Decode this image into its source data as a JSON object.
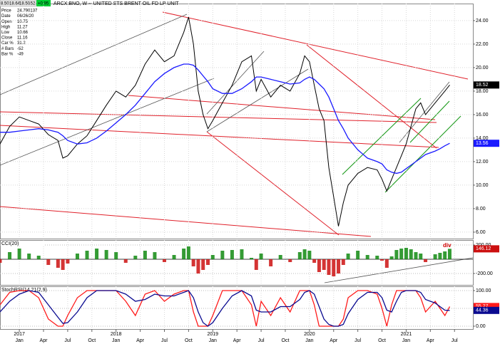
{
  "chart_data": {
    "type": "stock",
    "title": "ARCX:BNO, W -- UNITED STS BRENT OIL FD LP UNIT",
    "header_values": [
      "8.50",
      "18.64",
      "18.50",
      ".52"
    ],
    "change": "+0.95",
    "info": [
      {
        "label": "Price",
        "value": "24.790137"
      },
      {
        "label": "Date",
        "value": "06/26/20"
      },
      {
        "label": "Open",
        "value": "10.75"
      },
      {
        "label": "High",
        "value": "11.27"
      },
      {
        "label": "Low",
        "value": "10.66"
      },
      {
        "label": "Close",
        "value": "11.16"
      },
      {
        "label": "Car %",
        "value": "31.2"
      },
      {
        "label": "# Bars",
        "value": "-52"
      },
      {
        "label": "Bar %",
        "value": "-49"
      }
    ],
    "x": [
      2016.8,
      2016.9,
      2017.0,
      2017.1,
      2017.2,
      2017.3,
      2017.4,
      2017.45,
      2017.5,
      2017.6,
      2017.7,
      2017.8,
      2017.9,
      2018.0,
      2018.1,
      2018.2,
      2018.3,
      2018.4,
      2018.5,
      2018.6,
      2018.7,
      2018.75,
      2018.8,
      2018.85,
      2018.9,
      2018.95,
      2019.0,
      2019.1,
      2019.2,
      2019.3,
      2019.4,
      2019.45,
      2019.5,
      2019.6,
      2019.7,
      2019.8,
      2019.9,
      2019.95,
      2020.0,
      2020.05,
      2020.1,
      2020.15,
      2020.2,
      2020.25,
      2020.3,
      2020.35,
      2020.4,
      2020.5,
      2020.6,
      2020.7,
      2020.75,
      2020.8,
      2020.85,
      2020.9,
      2020.95,
      2021.0,
      2021.05,
      2021.1,
      2021.15,
      2021.2,
      2021.3,
      2021.35,
      2021.4,
      2021.45
    ],
    "xlim": [
      2016.8,
      2021.69
    ],
    "grid": true,
    "xticks": [
      {
        "value": 2017.0,
        "label": "Jan"
      },
      {
        "value": 2017.25,
        "label": "Apr"
      },
      {
        "value": 2017.5,
        "label": "Jul"
      },
      {
        "value": 2017.75,
        "label": "Oct"
      },
      {
        "value": 2018.0,
        "label": "Jan"
      },
      {
        "value": 2018.25,
        "label": "Apr"
      },
      {
        "value": 2018.5,
        "label": "Jul"
      },
      {
        "value": 2018.75,
        "label": "Oct"
      },
      {
        "value": 2019.0,
        "label": "Jan"
      },
      {
        "value": 2019.25,
        "label": "Apr"
      },
      {
        "value": 2019.5,
        "label": "Jul"
      },
      {
        "value": 2019.75,
        "label": "Oct"
      },
      {
        "value": 2020.0,
        "label": "Jan"
      },
      {
        "value": 2020.25,
        "label": "Apr"
      },
      {
        "value": 2020.5,
        "label": "Jul"
      },
      {
        "value": 2020.75,
        "label": "Oct"
      },
      {
        "value": 2021.0,
        "label": "Jan"
      },
      {
        "value": 2021.25,
        "label": "Apr"
      },
      {
        "value": 2021.5,
        "label": "Jul"
      }
    ],
    "year_labels": [
      2017,
      2018,
      2019,
      2020,
      2021
    ],
    "panels": [
      {
        "ylim": [
          5.45,
          25.45
        ],
        "yticks": [
          {
            "value": 6,
            "label": "6.00"
          },
          {
            "value": 8,
            "label": "8.00"
          },
          {
            "value": 10,
            "label": "10.00"
          },
          {
            "value": 12,
            "label": "12.00"
          },
          {
            "value": 14,
            "label": "14.00"
          },
          {
            "value": 16,
            "label": "16.00"
          },
          {
            "value": 18,
            "label": "18.00"
          },
          {
            "value": 20,
            "label": "20.00"
          },
          {
            "value": 22,
            "label": "22.00"
          },
          {
            "value": 24,
            "label": "24.00"
          }
        ],
        "series": [
          {
            "style": "line",
            "color": "#000000",
            "last_label": "18.52",
            "values": [
              13.5,
              15.0,
              15.8,
              15.5,
              15.2,
              14.3,
              13.8,
              12.3,
              12.5,
              13.5,
              14.2,
              15.5,
              16.8,
              18.0,
              17.5,
              18.5,
              20.3,
              21.5,
              20.5,
              21.0,
              23.0,
              24.3,
              22.0,
              18.0,
              16.0,
              14.8,
              15.5,
              17.0,
              18.5,
              20.5,
              21.0,
              18.0,
              19.0,
              17.5,
              18.5,
              18.0,
              19.5,
              21.0,
              20.5,
              18.5,
              16.5,
              15.5,
              11.5,
              9.0,
              6.5,
              8.5,
              10.0,
              11.0,
              11.5,
              11.3,
              10.5,
              9.5,
              10.5,
              11.5,
              12.5,
              13.5,
              15.0,
              16.5,
              17.0,
              16.0,
              17.0,
              17.5,
              18.0,
              18.52
            ]
          },
          {
            "style": "line",
            "color": "#1a1aff",
            "last_label": "13.56",
            "values": [
              14.5,
              14.5,
              14.6,
              14.7,
              14.8,
              14.7,
              14.5,
              14.2,
              13.8,
              13.5,
              13.6,
              14.0,
              14.6,
              15.3,
              16.0,
              16.8,
              17.8,
              18.8,
              19.5,
              20.0,
              20.3,
              20.3,
              20.2,
              19.8,
              19.3,
              18.8,
              18.2,
              17.8,
              17.8,
              18.2,
              18.8,
              19.2,
              19.2,
              19.0,
              18.8,
              18.6,
              18.7,
              19.0,
              19.2,
              19.0,
              18.6,
              18.2,
              17.5,
              16.5,
              15.5,
              14.8,
              14.0,
              13.0,
              12.3,
              12.0,
              11.8,
              11.3,
              11.1,
              11.0,
              11.1,
              11.4,
              11.7,
              12.0,
              12.3,
              12.6,
              12.9,
              13.1,
              13.35,
              13.56
            ]
          }
        ]
      },
      {
        "label": "CCI(20)",
        "annotation": "div",
        "ylim": [
          -360,
          270
        ],
        "yticks": [
          {
            "value": 200,
            "label": "200.00"
          },
          {
            "value": -200,
            "label": "-200.00"
          }
        ],
        "zero_line": 0,
        "series": [
          {
            "style": "histogram",
            "up_color": "#108a10",
            "down_color": "#cc1010",
            "color": "#cc1010",
            "last_label": "146.12",
            "values": [
              -50,
              100,
              150,
              80,
              50,
              -80,
              -120,
              -150,
              -60,
              80,
              120,
              150,
              130,
              100,
              -50,
              50,
              120,
              100,
              -40,
              60,
              150,
              180,
              -100,
              -200,
              -150,
              -80,
              60,
              120,
              130,
              140,
              20,
              -150,
              80,
              -100,
              60,
              -40,
              100,
              140,
              120,
              -50,
              -180,
              -150,
              -220,
              -240,
              -200,
              -80,
              80,
              120,
              60,
              50,
              -20,
              -120,
              40,
              130,
              150,
              160,
              140,
              100,
              80,
              -40,
              70,
              90,
              110,
              146.12
            ]
          }
        ]
      },
      {
        "label": "StochRSI(14,21(2,9)",
        "ylim": [
          -8,
          112
        ],
        "yticks": [
          {
            "value": 0,
            "label": "0.00"
          },
          {
            "value": 50,
            "label": "50.00"
          },
          {
            "value": 100,
            "label": "100.00"
          }
        ],
        "series": [
          {
            "style": "line",
            "color": "#ff1a1a",
            "last_label": "55.27",
            "values": [
              60,
              95,
              100,
              100,
              80,
              20,
              0,
              0,
              30,
              80,
              100,
              100,
              100,
              100,
              70,
              30,
              90,
              100,
              70,
              90,
              100,
              100,
              40,
              0,
              0,
              0,
              30,
              100,
              100,
              100,
              60,
              0,
              70,
              30,
              80,
              40,
              100,
              100,
              100,
              60,
              0,
              0,
              0,
              0,
              0,
              20,
              80,
              100,
              100,
              90,
              50,
              0,
              60,
              100,
              100,
              100,
              100,
              100,
              80,
              40,
              70,
              50,
              30,
              55.27
            ]
          },
          {
            "style": "line",
            "color": "#0a0a90",
            "last_label": "44.36",
            "values": [
              40,
              70,
              90,
              100,
              95,
              60,
              25,
              8,
              10,
              40,
              80,
              100,
              100,
              100,
              90,
              70,
              75,
              90,
              85,
              85,
              95,
              100,
              80,
              40,
              10,
              0,
              10,
              50,
              85,
              100,
              85,
              45,
              40,
              40,
              55,
              55,
              75,
              95,
              100,
              90,
              55,
              20,
              5,
              0,
              0,
              5,
              35,
              75,
              95,
              95,
              80,
              45,
              40,
              70,
              95,
              100,
              100,
              100,
              95,
              75,
              65,
              55,
              45,
              44.36
            ]
          }
        ]
      }
    ]
  }
}
